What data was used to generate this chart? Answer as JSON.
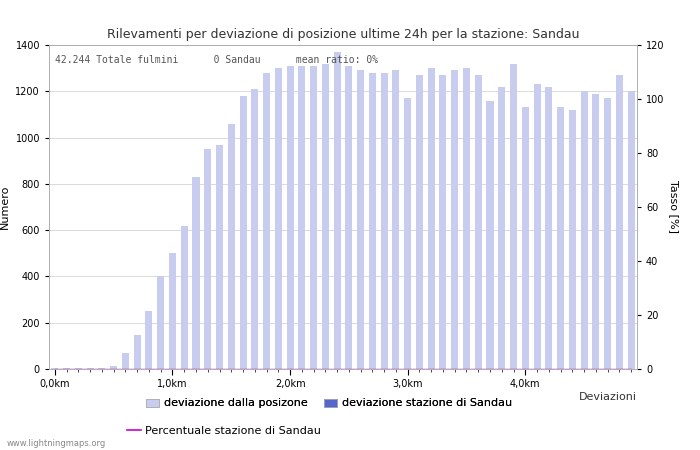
{
  "title": "Rilevamenti per deviazione di posizione ultime 24h per la stazione: Sandau",
  "subtitle": "42.244 Totale fulmini      0 Sandau      mean ratio: 0%",
  "xlabel": "Deviazioni",
  "ylabel_left": "Numero",
  "ylabel_right": "Tasso [%]",
  "bar_color_light": "#c8ccee",
  "bar_color_dark": "#5566cc",
  "line_color": "#cc00cc",
  "background_color": "#ffffff",
  "grid_color": "#cccccc",
  "ylim_left": [
    0,
    1400
  ],
  "ylim_right": [
    0,
    120
  ],
  "yticks_left": [
    0,
    200,
    400,
    600,
    800,
    1000,
    1200,
    1400
  ],
  "yticks_right": [
    0,
    20,
    40,
    60,
    80,
    100,
    120
  ],
  "bar_values": [
    5,
    3,
    3,
    3,
    3,
    15,
    70,
    145,
    250,
    400,
    500,
    620,
    830,
    950,
    970,
    1060,
    1180,
    1210,
    1280,
    1300,
    1310,
    1310,
    1310,
    1320,
    1370,
    1310,
    1290,
    1280,
    1280,
    1290,
    1170,
    1270,
    1300,
    1270,
    1290,
    1300,
    1270,
    1160,
    1220,
    1320,
    1130,
    1230,
    1220,
    1130,
    1120,
    1200,
    1190,
    1170,
    1270,
    1200
  ],
  "station_bar_values": [
    0,
    0,
    0,
    0,
    0,
    0,
    0,
    0,
    0,
    0,
    0,
    0,
    0,
    0,
    0,
    0,
    0,
    0,
    0,
    0,
    0,
    0,
    0,
    0,
    0,
    0,
    0,
    0,
    0,
    0,
    0,
    0,
    0,
    0,
    0,
    0,
    0,
    0,
    0,
    0,
    0,
    0,
    0,
    0,
    0,
    0,
    0,
    0,
    0,
    0
  ],
  "ratio_values": [
    0,
    0,
    0,
    0,
    0,
    0,
    0,
    0,
    0,
    0,
    0,
    0,
    0,
    0,
    0,
    0,
    0,
    0,
    0,
    0,
    0,
    0,
    0,
    0,
    0,
    0,
    0,
    0,
    0,
    0,
    0,
    0,
    0,
    0,
    0,
    0,
    0,
    0,
    0,
    0,
    0,
    0,
    0,
    0,
    0,
    0,
    0,
    0,
    0,
    0
  ],
  "n_bars": 50,
  "km_positions": [
    0,
    10,
    20,
    30,
    40
  ],
  "km_labels": [
    "0,0km",
    "1,0km",
    "2,0km",
    "3,0km",
    "4,0km"
  ],
  "title_fontsize": 9,
  "label_fontsize": 8,
  "tick_fontsize": 7,
  "legend_fontsize": 8,
  "subtitle_fontsize": 7,
  "watermark": "www.lightningmaps.org",
  "watermark_fontsize": 6
}
